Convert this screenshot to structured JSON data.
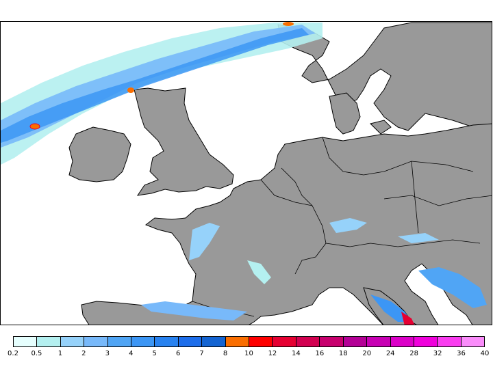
{
  "legend": {
    "labels": [
      "0.2",
      "0.5",
      "1",
      "2",
      "3",
      "4",
      "5",
      "6",
      "7",
      "8",
      "10",
      "12",
      "14",
      "16",
      "18",
      "20",
      "24",
      "28",
      "32",
      "36",
      "40"
    ],
    "colors": [
      "#e6fffe",
      "#b4f0f0",
      "#96d2fa",
      "#78b9fa",
      "#50a5f5",
      "#3c96f5",
      "#2882f0",
      "#1e6eeb",
      "#1464d2",
      "#fa6e00",
      "#ff0000",
      "#e60032",
      "#d20050",
      "#c8006e",
      "#b40096",
      "#c800b4",
      "#dc00c8",
      "#f000dc",
      "#fa3cf0",
      "#fa8cfa"
    ]
  },
  "map": {
    "land_color": "#999999",
    "sea_color": "#ffffff",
    "border_color": "#000000"
  }
}
